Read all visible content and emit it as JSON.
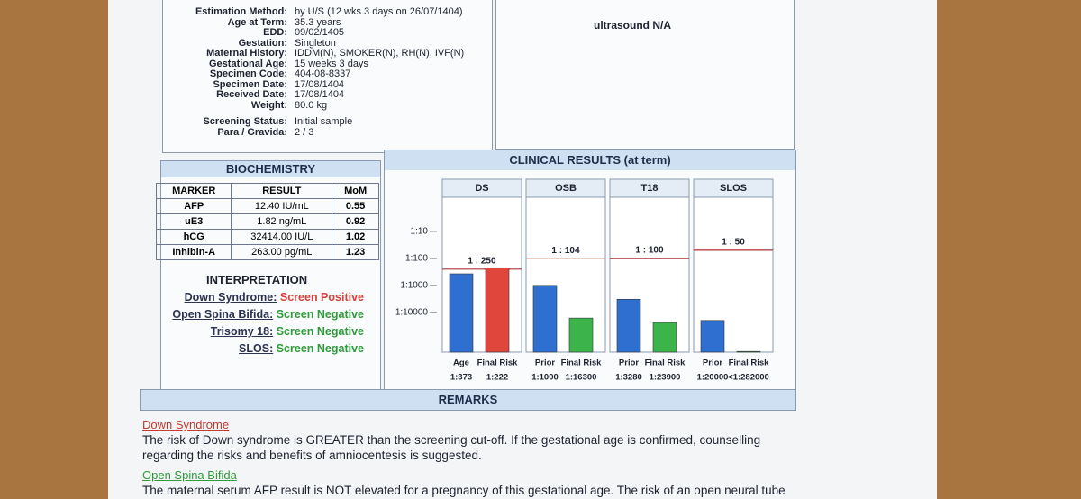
{
  "patient_info": [
    {
      "label": "Estimation Method:",
      "value": "by U/S (12 wks 3 days on 26/07/1404)"
    },
    {
      "label": "Age at Term:",
      "value": "35.3 years"
    },
    {
      "label": "EDD:",
      "value": "09/02/1405"
    },
    {
      "label": "Gestation:",
      "value": "Singleton"
    },
    {
      "label": "Maternal History:",
      "value": "IDDM(N), SMOKER(N), RH(N), IVF(N)"
    },
    {
      "label": "Gestational Age:",
      "value": "15 weeks 3 days"
    },
    {
      "label": "Specimen Code:",
      "value": "404-08-8337"
    },
    {
      "label": "Specimen Date:",
      "value": "17/08/1404"
    },
    {
      "label": "Received Date:",
      "value": "17/08/1404"
    },
    {
      "label": "Weight:",
      "value": "80.0 kg"
    },
    {
      "label": "Screening Status:",
      "value": "Initial sample"
    },
    {
      "label": "Para / Gravida:",
      "value": "2 / 3"
    }
  ],
  "ultrasound": {
    "text": "ultrasound N/A"
  },
  "biochemistry": {
    "title": "BIOCHEMISTRY",
    "headers": [
      "MARKER",
      "RESULT",
      "MoM"
    ],
    "rows": [
      [
        "AFP",
        "12.40 IU/mL",
        "0.55"
      ],
      [
        "uE3",
        "1.82 ng/mL",
        "0.92"
      ],
      [
        "hCG",
        "32414.00 IU/L",
        "1.02"
      ],
      [
        "Inhibin-A",
        "263.00 pg/mL",
        "1.23"
      ]
    ]
  },
  "interpretation": {
    "title": "INTERPRETATION",
    "items": [
      {
        "condition": "Down Syndrome:",
        "result": "Screen  Positive",
        "color": "#d8403a"
      },
      {
        "condition": "Open Spina Bifida:",
        "result": "Screen Negative",
        "color": "#2f9a3a"
      },
      {
        "condition": "Trisomy 18:",
        "result": "Screen Negative",
        "color": "#2f9a3a"
      },
      {
        "condition": "SLOS:",
        "result": "Screen Negative",
        "color": "#2f9a3a"
      }
    ]
  },
  "clinical_results": {
    "title": "CLINICAL RESULTS (at term)",
    "log_scale": true,
    "ylim": [
      1,
      300000
    ],
    "yticks": [
      {
        "value": 10,
        "label": "1:10"
      },
      {
        "value": 100,
        "label": "1:100"
      },
      {
        "value": 1000,
        "label": "1:1000"
      },
      {
        "value": 10000,
        "label": "1:10000"
      }
    ],
    "panels": [
      {
        "name": "DS",
        "cutoff": {
          "value": 250,
          "label": "1 : 250"
        },
        "bars": [
          {
            "name": "Age",
            "value": 373,
            "value_label": "1:373",
            "color": "#2f6fd0"
          },
          {
            "name": "Final Risk",
            "value": 222,
            "value_label": "1:222",
            "color": "#e0463c"
          }
        ]
      },
      {
        "name": "OSB",
        "cutoff": {
          "value": 104,
          "label": "1 : 104"
        },
        "bars": [
          {
            "name": "Prior",
            "value": 1000,
            "value_label": "1:1000",
            "color": "#2f6fd0"
          },
          {
            "name": "Final Risk",
            "value": 16300,
            "value_label": "1:16300",
            "color": "#3cb44b"
          }
        ]
      },
      {
        "name": "T18",
        "cutoff": {
          "value": 100,
          "label": "1 : 100"
        },
        "bars": [
          {
            "name": "Prior",
            "value": 3280,
            "value_label": "1:3280",
            "color": "#2f6fd0"
          },
          {
            "name": "Final Risk",
            "value": 23900,
            "value_label": "1:23900",
            "color": "#3cb44b"
          }
        ]
      },
      {
        "name": "SLOS",
        "cutoff": {
          "value": 50,
          "label": "1 : 50"
        },
        "bars": [
          {
            "name": "Prior",
            "value": 20000,
            "value_label": "1:20000",
            "color": "#2f6fd0"
          },
          {
            "name": "Final Risk",
            "value": 282000,
            "value_label": "<1:282000",
            "color": "#3cb44b"
          }
        ]
      }
    ]
  },
  "remarks": {
    "title": "REMARKS",
    "sections": [
      {
        "heading": "Down Syndrome",
        "text": "The risk of Down syndrome is GREATER than the screening cut-off. If the gestational age is confirmed, counselling regarding the risks and benefits of amniocentesis is suggested."
      },
      {
        "heading": "Open Spina Bifida",
        "text": "The maternal serum AFP result is NOT elevated for a pregnancy of this gestational age.  The risk of an open neural tube"
      }
    ]
  }
}
